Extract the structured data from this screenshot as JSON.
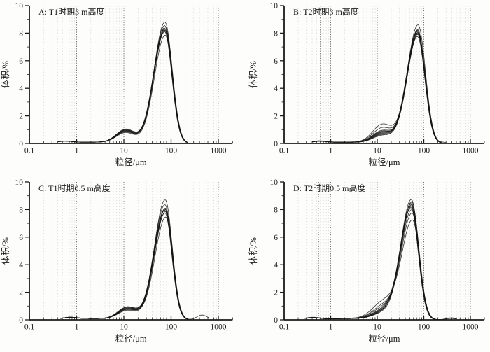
{
  "figure": {
    "background": "#fdfdfb",
    "ink": "#1b1b1b",
    "curve_color": "#161616",
    "grid_minor_color": "#d7d7d7",
    "grid_major_color": "#5c5c5c"
  },
  "curve_fields": [
    "peak_um",
    "peak_pct",
    "shoulder_pct",
    "plateau_pct",
    "start_um",
    "end_um",
    "bump_um",
    "bump_pct"
  ],
  "chart_data": [
    {
      "id": "A",
      "title": "A: T1时期3 m高度",
      "xlabel": "粒径/μm",
      "ylabel": "体积/%",
      "type": "line",
      "xscale": "log",
      "xlim": [
        0.1,
        2000
      ],
      "ylim": [
        0,
        10
      ],
      "xticks": [
        0.1,
        1,
        10,
        100,
        1000
      ],
      "yticks": [
        0,
        2,
        4,
        6,
        8,
        10
      ],
      "grid_major_um": [
        1,
        10,
        100,
        1000
      ],
      "shoulder_um": 11,
      "shoulder_sigma": 0.2,
      "micro_um": 0.55,
      "width_left": 0.23,
      "width_right": 0.155,
      "curves": [
        [
          74,
          8.8,
          0.95,
          0.13,
          0.4,
          230,
          0,
          0
        ],
        [
          73,
          8.55,
          1.0,
          0.13,
          0.4,
          225,
          0,
          0
        ],
        [
          75,
          8.45,
          0.9,
          0.12,
          0.42,
          230,
          0,
          0
        ],
        [
          73,
          8.35,
          0.95,
          0.13,
          0.4,
          220,
          0,
          0
        ],
        [
          74,
          8.3,
          0.85,
          0.12,
          0.45,
          225,
          0,
          0
        ],
        [
          72,
          8.25,
          0.9,
          0.13,
          0.4,
          215,
          0,
          0
        ],
        [
          74,
          8.2,
          0.8,
          0.12,
          0.42,
          220,
          0,
          0
        ],
        [
          73,
          8.1,
          0.85,
          0.13,
          0.4,
          215,
          0,
          0
        ],
        [
          75,
          7.85,
          0.75,
          0.12,
          0.45,
          230,
          0,
          0
        ]
      ]
    },
    {
      "id": "B",
      "title": "B: T2时期3 m高度",
      "xlabel": "粒径/μm",
      "ylabel": "体积/%",
      "type": "line",
      "xscale": "log",
      "xlim": [
        0.1,
        2000
      ],
      "ylim": [
        0,
        10
      ],
      "xticks": [
        0.1,
        1,
        10,
        100,
        1000
      ],
      "yticks": [
        0,
        2,
        4,
        6,
        8,
        10
      ],
      "grid_major_um": [
        0.6,
        1,
        10,
        100,
        1000
      ],
      "shoulder_um": 13,
      "shoulder_sigma": 0.21,
      "micro_um": 0.55,
      "width_left": 0.23,
      "width_right": 0.16,
      "curves": [
        [
          75,
          8.6,
          0.8,
          0.12,
          0.4,
          260,
          0,
          0
        ],
        [
          74,
          8.25,
          1.35,
          0.14,
          0.4,
          250,
          0,
          0
        ],
        [
          73,
          8.2,
          0.7,
          0.12,
          0.42,
          240,
          0,
          0
        ],
        [
          74,
          8.15,
          0.9,
          0.13,
          0.4,
          245,
          0,
          0
        ],
        [
          72,
          8.1,
          0.75,
          0.12,
          0.45,
          250,
          0,
          0
        ],
        [
          74,
          8.05,
          1.1,
          0.13,
          0.4,
          255,
          0,
          0
        ],
        [
          73,
          8.0,
          0.65,
          0.12,
          0.4,
          240,
          0,
          0
        ],
        [
          75,
          7.95,
          0.85,
          0.13,
          0.42,
          260,
          0,
          0
        ],
        [
          74,
          7.9,
          0.6,
          0.12,
          0.45,
          245,
          0,
          0
        ],
        [
          73,
          7.75,
          0.55,
          0.11,
          0.4,
          300,
          260,
          0.08
        ]
      ]
    },
    {
      "id": "C",
      "title": "C: T1时期0.5 m高度",
      "xlabel": "粒径/μm",
      "ylabel": "体积/%",
      "type": "line",
      "xscale": "log",
      "xlim": [
        0.1,
        2000
      ],
      "ylim": [
        0,
        10
      ],
      "xticks": [
        0.1,
        1,
        10,
        100,
        1000
      ],
      "yticks": [
        0,
        2,
        4,
        6,
        8,
        10
      ],
      "grid_major_um": [
        1,
        10,
        100,
        1000
      ],
      "shoulder_um": 12,
      "shoulder_sigma": 0.2,
      "micro_um": 0.7,
      "width_left": 0.23,
      "width_right": 0.15,
      "curves": [
        [
          75,
          8.7,
          0.8,
          0.12,
          0.45,
          230,
          0,
          0
        ],
        [
          74,
          8.35,
          0.9,
          0.13,
          0.45,
          220,
          0,
          0
        ],
        [
          76,
          8.1,
          0.75,
          0.12,
          0.5,
          230,
          0,
          0
        ],
        [
          74,
          8.05,
          0.85,
          0.13,
          0.45,
          225,
          0,
          0
        ],
        [
          75,
          8.0,
          0.7,
          0.12,
          0.5,
          240,
          0,
          0
        ],
        [
          73,
          7.95,
          0.8,
          0.13,
          0.45,
          220,
          0,
          0
        ],
        [
          76,
          7.85,
          0.65,
          0.12,
          0.5,
          230,
          0,
          0
        ],
        [
          74,
          7.75,
          0.75,
          0.12,
          0.45,
          225,
          0,
          0
        ],
        [
          77,
          7.45,
          0.9,
          0.13,
          0.5,
          650,
          450,
          0.35
        ]
      ]
    },
    {
      "id": "D",
      "title": "D: T2时期0.5 m高度",
      "xlabel": "粒径/μm",
      "ylabel": "体积/%",
      "type": "line",
      "xscale": "log",
      "xlim": [
        0.1,
        2000
      ],
      "ylim": [
        0,
        10
      ],
      "xticks": [
        0.1,
        1,
        10,
        100,
        1000
      ],
      "yticks": [
        0,
        2,
        4,
        6,
        8,
        10
      ],
      "grid_major_um": [
        0.55,
        1,
        7,
        10,
        100,
        1000
      ],
      "shoulder_um": 14,
      "shoulder_sigma": 0.24,
      "micro_um": 0.4,
      "width_left": 0.23,
      "width_right": 0.155,
      "curves": [
        [
          54,
          8.7,
          0.5,
          0.12,
          0.28,
          220,
          0,
          0
        ],
        [
          55,
          8.55,
          0.45,
          0.12,
          0.28,
          215,
          0,
          0
        ],
        [
          54,
          8.45,
          0.55,
          0.13,
          0.3,
          220,
          0,
          0
        ],
        [
          53,
          8.35,
          0.5,
          0.12,
          0.28,
          210,
          0,
          0
        ],
        [
          55,
          8.3,
          0.6,
          0.13,
          0.3,
          215,
          0,
          0
        ],
        [
          54,
          8.2,
          0.65,
          0.12,
          0.28,
          220,
          0,
          0
        ],
        [
          53,
          8.1,
          0.7,
          0.13,
          0.3,
          215,
          0,
          0
        ],
        [
          55,
          7.95,
          0.85,
          0.13,
          0.3,
          500,
          380,
          0.12
        ],
        [
          56,
          7.7,
          1.0,
          0.14,
          0.28,
          520,
          400,
          0.15
        ],
        [
          57,
          7.2,
          1.3,
          0.15,
          0.3,
          480,
          380,
          0.1
        ]
      ]
    }
  ]
}
